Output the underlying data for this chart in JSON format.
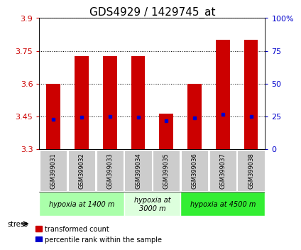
{
  "title": "GDS4929 / 1429745_at",
  "samples": [
    "GSM399031",
    "GSM399032",
    "GSM399033",
    "GSM399034",
    "GSM399035",
    "GSM399036",
    "GSM399037",
    "GSM399038"
  ],
  "transformed_count": [
    3.6,
    3.725,
    3.725,
    3.725,
    3.46,
    3.6,
    3.8,
    3.8
  ],
  "percentile_rank": [
    3.435,
    3.445,
    3.448,
    3.445,
    3.43,
    3.443,
    3.458,
    3.45
  ],
  "ylim_left": [
    3.3,
    3.9
  ],
  "yticks_left": [
    3.3,
    3.45,
    3.6,
    3.75,
    3.9
  ],
  "yticks_right": [
    0,
    25,
    50,
    75,
    100
  ],
  "ytick_labels_left": [
    "3.3",
    "3.45",
    "3.6",
    "3.75",
    "3.9"
  ],
  "ytick_labels_right": [
    "0",
    "25",
    "50",
    "75",
    "100%"
  ],
  "bar_color": "#cc0000",
  "dot_color": "#0000cc",
  "background_color": "#ffffff",
  "groups": [
    {
      "label": "hypoxia at 1400 m",
      "start": 0,
      "end": 3,
      "color": "#aaffaa"
    },
    {
      "label": "hypoxia at\n3000 m",
      "start": 3,
      "end": 5,
      "color": "#ddffdd"
    },
    {
      "label": "hypoxia at 4500 m",
      "start": 5,
      "end": 8,
      "color": "#33ee33"
    }
  ],
  "stress_label": "stress",
  "legend_items": [
    {
      "color": "#cc0000",
      "label": "transformed count"
    },
    {
      "color": "#0000cc",
      "label": "percentile rank within the sample"
    }
  ],
  "title_fontsize": 11,
  "axis_label_color_left": "#cc0000",
  "axis_label_color_right": "#0000cc",
  "sample_box_color": "#cccccc"
}
